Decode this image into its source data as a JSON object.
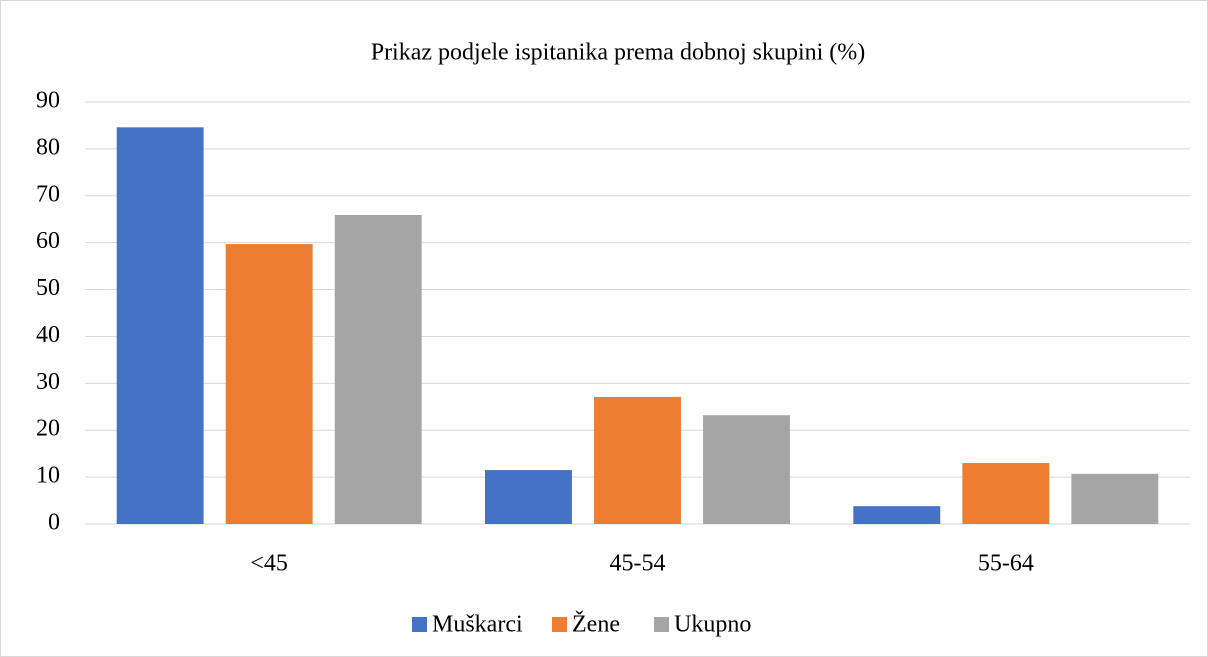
{
  "chart_data": {
    "type": "bar",
    "title": "Prikaz podjele ispitanika prema dobnoj skupini (%)",
    "categories": [
      "<45",
      "45-54",
      "55-64"
    ],
    "series": [
      {
        "name": "Muškarci",
        "color": "#4472c4",
        "values": [
          84.6,
          11.5,
          3.8
        ]
      },
      {
        "name": "Žene",
        "color": "#ed7d31",
        "values": [
          59.7,
          27.1,
          13.0
        ]
      },
      {
        "name": "Ukupno",
        "color": "#a5a5a5",
        "values": [
          65.9,
          23.2,
          10.7
        ]
      }
    ],
    "ylim": [
      0,
      90
    ],
    "yticks": [
      0,
      10,
      20,
      30,
      40,
      50,
      60,
      70,
      80,
      90
    ],
    "grid": true,
    "legend": "bottom"
  }
}
